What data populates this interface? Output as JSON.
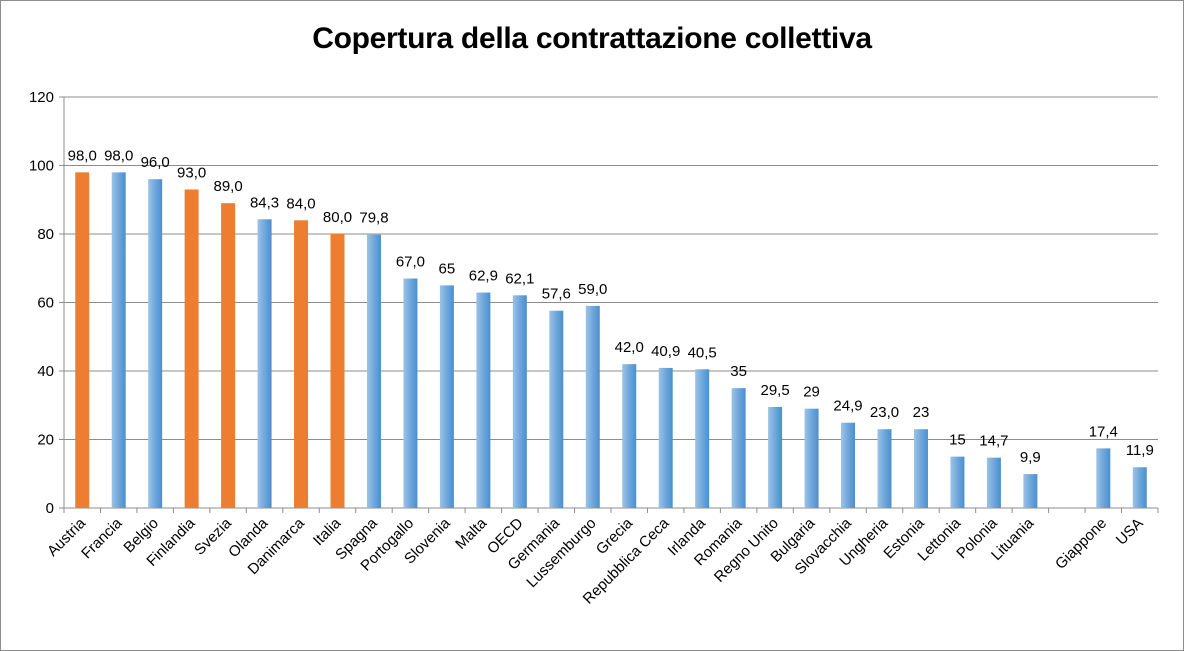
{
  "chart_data": {
    "type": "bar",
    "title": "Copertura della contrattazione collettiva",
    "xlabel": "",
    "ylabel": "",
    "ylim": [
      0,
      120
    ],
    "yticks": [
      0,
      20,
      40,
      60,
      80,
      100,
      120
    ],
    "grid": true,
    "legend": "none",
    "colors": {
      "highlight": "#ed7d31",
      "default": "#5b9bd5",
      "default_light": "#9dc3e6"
    },
    "categories": [
      "Austria",
      "Francia",
      "Belgio",
      "Finlandia",
      "Svezia",
      "Olanda",
      "Danimarca",
      "Italia",
      "Spagna",
      "Portogallo",
      "Slovenia",
      "Malta",
      "OECD",
      "Germania",
      "Lussemburgo",
      "Grecia",
      "Repubblica Ceca",
      "Irlanda",
      "Romania",
      "Regno Unito",
      "Bulgaria",
      "Slovacchia",
      "Ungheria",
      "Estonia",
      "Lettonia",
      "Polonia",
      "Lituania",
      "",
      "Giappone",
      "USA"
    ],
    "values": [
      98.0,
      98.0,
      96.0,
      93.0,
      89.0,
      84.3,
      84.0,
      80.0,
      79.8,
      67.0,
      65,
      62.9,
      62.1,
      57.6,
      59.0,
      42.0,
      40.9,
      40.5,
      35,
      29.5,
      29,
      24.9,
      23.0,
      23,
      15,
      14.7,
      9.9,
      null,
      17.4,
      11.9
    ],
    "labels": [
      "98,0",
      "98,0",
      "96,0",
      "93,0",
      "89,0",
      "84,3",
      "84,0",
      "80,0",
      "79,8",
      "67,0",
      "65",
      "62,9",
      "62,1",
      "57,6",
      "59,0",
      "42,0",
      "40,9",
      "40,5",
      "35",
      "29,5",
      "29",
      "24,9",
      "23,0",
      "23",
      "15",
      "14,7",
      "9,9",
      "",
      "17,4",
      "11,9"
    ],
    "highlighted": [
      "Austria",
      "Finlandia",
      "Svezia",
      "Danimarca",
      "Italia"
    ]
  }
}
